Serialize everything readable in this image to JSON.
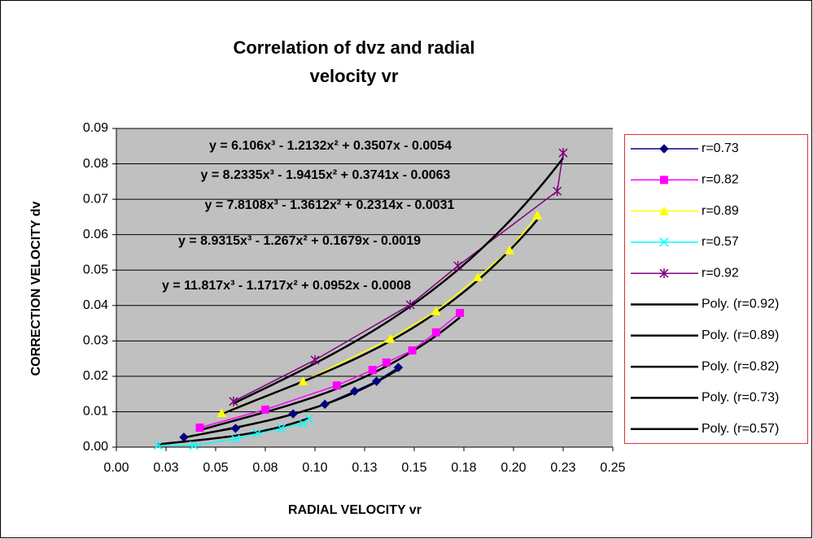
{
  "chart_data": {
    "type": "scatter",
    "title": [
      "Correlation of dvz and radial",
      "velocity vr"
    ],
    "xlabel": "RADIAL VELOCITY vr",
    "ylabel": "CORRECTION VELOCITY dv",
    "xlim": [
      0,
      0.25
    ],
    "ylim": [
      0,
      0.09
    ],
    "xticks": [
      {
        "value": 0,
        "label": "0.00"
      },
      {
        "value": 0.025,
        "label": "0.03"
      },
      {
        "value": 0.05,
        "label": "0.05"
      },
      {
        "value": 0.075,
        "label": "0.08"
      },
      {
        "value": 0.1,
        "label": "0.10"
      },
      {
        "value": 0.125,
        "label": "0.13"
      },
      {
        "value": 0.15,
        "label": "0.15"
      },
      {
        "value": 0.175,
        "label": "0.18"
      },
      {
        "value": 0.2,
        "label": "0.20"
      },
      {
        "value": 0.225,
        "label": "0.23"
      },
      {
        "value": 0.25,
        "label": "0.25"
      }
    ],
    "yticks": [
      {
        "value": 0,
        "label": "0.00"
      },
      {
        "value": 0.01,
        "label": "0.01"
      },
      {
        "value": 0.02,
        "label": "0.02"
      },
      {
        "value": 0.03,
        "label": "0.03"
      },
      {
        "value": 0.04,
        "label": "0.04"
      },
      {
        "value": 0.05,
        "label": "0.05"
      },
      {
        "value": 0.06,
        "label": "0.06"
      },
      {
        "value": 0.07,
        "label": "0.07"
      },
      {
        "value": 0.08,
        "label": "0.08"
      },
      {
        "value": 0.09,
        "label": "0.09"
      }
    ],
    "grid": true,
    "legend": "right",
    "series": [
      {
        "name": "r=0.73",
        "color": "#000080",
        "marker": "diamond",
        "x": [
          0.034,
          0.06,
          0.089,
          0.105,
          0.12,
          0.131,
          0.142
        ],
        "values": [
          0.0028,
          0.0053,
          0.0094,
          0.0121,
          0.0158,
          0.0186,
          0.0225
        ]
      },
      {
        "name": "r=0.82",
        "color": "#ff00ff",
        "marker": "square",
        "x": [
          0.042,
          0.075,
          0.111,
          0.129,
          0.136,
          0.149,
          0.161,
          0.173
        ],
        "values": [
          0.0055,
          0.0106,
          0.0174,
          0.0218,
          0.0239,
          0.0273,
          0.0324,
          0.0379
        ]
      },
      {
        "name": "r=0.89",
        "color": "#ffff00",
        "marker": "triangle",
        "x": [
          0.053,
          0.094,
          0.138,
          0.161,
          0.182,
          0.198,
          0.212
        ],
        "values": [
          0.0096,
          0.0186,
          0.0306,
          0.0384,
          0.048,
          0.0556,
          0.0655
        ]
      },
      {
        "name": "r=0.57",
        "color": "#00ffff",
        "marker": "x",
        "x": [
          0.021,
          0.039,
          0.06,
          0.071,
          0.083,
          0.094,
          0.097
        ],
        "values": [
          0.0005,
          0.0005,
          0.0023,
          0.0039,
          0.0053,
          0.0067,
          0.008
        ]
      },
      {
        "name": "r=0.92",
        "color": "#800080",
        "marker": "star",
        "x": [
          0.059,
          0.1,
          0.148,
          0.172,
          0.222,
          0.225
        ],
        "values": [
          0.0129,
          0.0246,
          0.0402,
          0.0512,
          0.0723,
          0.0831
        ]
      }
    ],
    "trendlines": [
      {
        "name": "Poly. (r=0.92)",
        "color": "#000000",
        "equation": "y = 6.106x³ - 1.2132x² + 0.3507x - 0.0054"
      },
      {
        "name": "Poly. (r=0.89)",
        "color": "#000000",
        "equation": "y = 8.2335x³ - 1.9415x² + 0.3741x - 0.0063"
      },
      {
        "name": "Poly. (r=0.82)",
        "color": "#000000",
        "equation": "y = 7.8108x³ - 1.3612x² + 0.2314x - 0.0031"
      },
      {
        "name": "Poly. (r=0.73)",
        "color": "#000000",
        "equation": "y = 8.9315x³ - 1.267x² + 0.1679x - 0.0019"
      },
      {
        "name": "Poly. (r=0.57)",
        "color": "#000000",
        "equation": "y = 11.817x³ - 1.1717x² + 0.0952x - 0.0008"
      }
    ]
  }
}
